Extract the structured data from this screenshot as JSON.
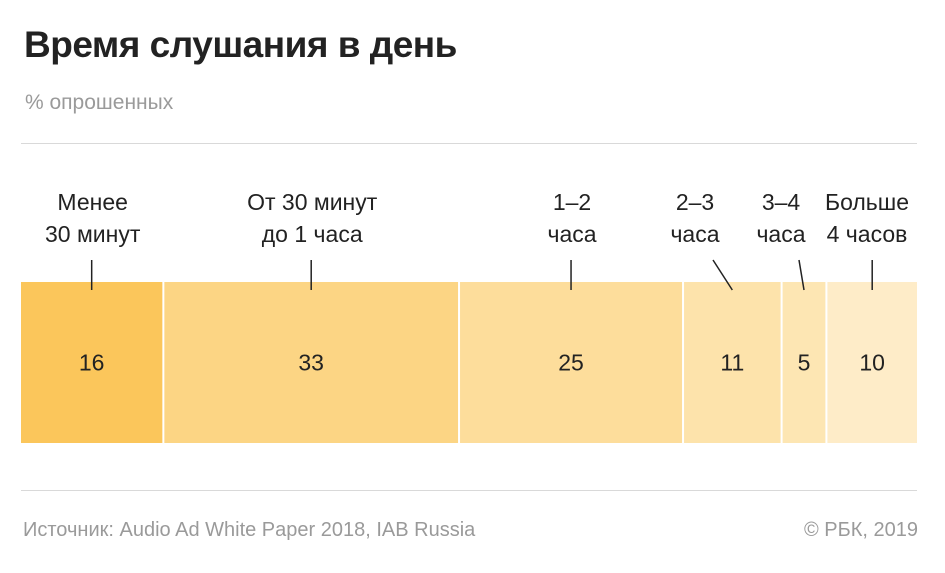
{
  "header": {
    "title": "Время слушания в день",
    "subtitle": "% опрошенных"
  },
  "chart_data": {
    "type": "bar",
    "orientation": "stacked-horizontal",
    "unit": "%",
    "categories": [
      [
        "Менее",
        "30 минут"
      ],
      [
        "От 30 минут",
        "до 1 часа"
      ],
      [
        "1–2",
        "часа"
      ],
      [
        "2–3",
        "часа"
      ],
      [
        "3–4",
        "часа"
      ],
      [
        "Больше",
        "4 часов"
      ]
    ],
    "values": [
      16,
      33,
      25,
      11,
      5,
      10
    ],
    "colors": [
      "#fbc65b",
      "#fcd584",
      "#fddd9b",
      "#fde3ab",
      "#fde6b3",
      "#feecc8"
    ],
    "data_labels": [
      "16",
      "33",
      "25",
      "11",
      "5",
      "10"
    ],
    "grid": false,
    "legend": "none"
  },
  "footer": {
    "source": "Источник: Audio Ad White Paper 2018, IAB Russia",
    "copyright": "© РБК, 2019"
  }
}
